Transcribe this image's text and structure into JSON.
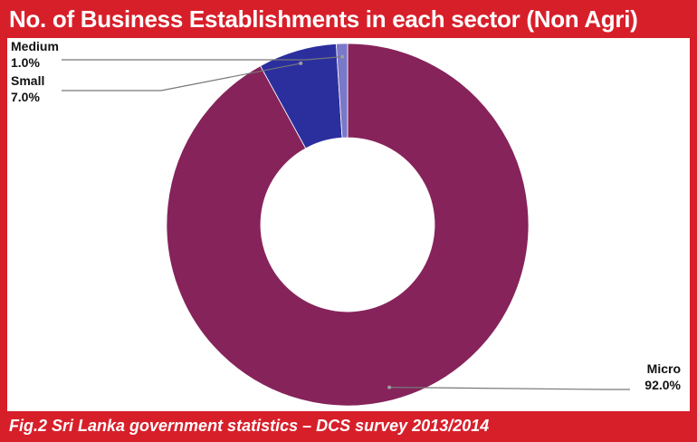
{
  "title": "No. of Business Establishments in each sector (Non Agri)",
  "caption": "Fig.2 Sri Lanka government statistics – DCS survey 2013/2014",
  "colors": {
    "frame": "#d71f2a",
    "Micro": "#86235a",
    "Small": "#2b2f9e",
    "Medium": "#7a78c8"
  },
  "chart_data": {
    "type": "pie",
    "donut": true,
    "title": "No. of Business Establishments in each sector (Non Agri)",
    "categories": [
      "Micro",
      "Small",
      "Medium"
    ],
    "values": [
      92.0,
      7.0,
      1.0
    ],
    "labels": [
      {
        "name": "Micro",
        "value": "92.0%"
      },
      {
        "name": "Small",
        "value": "7.0%"
      },
      {
        "name": "Medium",
        "value": "1.0%"
      }
    ],
    "legend": "none"
  }
}
